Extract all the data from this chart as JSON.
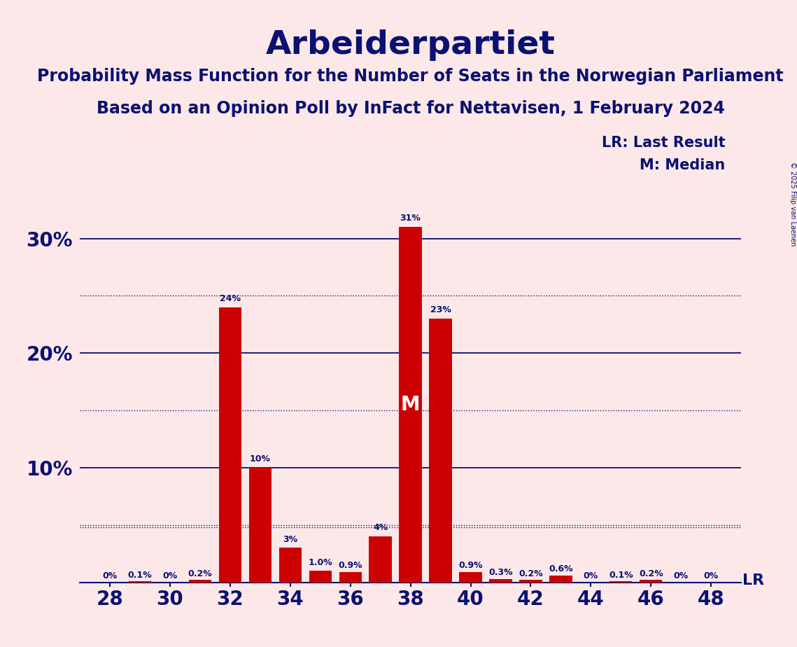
{
  "title": "Arbeiderpartiet",
  "subtitle1": "Probability Mass Function for the Number of Seats in the Norwegian Parliament",
  "subtitle2": "Based on an Opinion Poll by InFact for Nettavisen, 1 February 2024",
  "seats": [
    28,
    29,
    30,
    31,
    32,
    33,
    34,
    35,
    36,
    37,
    38,
    39,
    40,
    41,
    42,
    43,
    44,
    45,
    46,
    47,
    48
  ],
  "probabilities": [
    0.0,
    0.1,
    0.0,
    0.2,
    24.0,
    10.0,
    3.0,
    1.0,
    0.9,
    4.0,
    31.0,
    23.0,
    0.9,
    0.3,
    0.2,
    0.6,
    0.0,
    0.1,
    0.2,
    0.0,
    0.0
  ],
  "labels": [
    "0%",
    "0.1%",
    "0%",
    "0.2%",
    "24%",
    "10%",
    "3%",
    "1.0%",
    "0.9%",
    "4%",
    "31%",
    "23%",
    "0.9%",
    "0.3%",
    "0.2%",
    "0.6%",
    "0%",
    "0.1%",
    "0.2%",
    "0%",
    "0%"
  ],
  "bar_color": "#cc0000",
  "background_color": "#fce8e8",
  "text_color": "#0a1172",
  "title_fontsize": 34,
  "subtitle_fontsize": 17,
  "ylabel_values": [
    10,
    20,
    30
  ],
  "ylim": [
    0,
    35
  ],
  "xlim": [
    27.0,
    49.0
  ],
  "xticks": [
    28,
    30,
    32,
    34,
    36,
    38,
    40,
    42,
    44,
    46,
    48
  ],
  "median_seat": 38,
  "lr_value": 4.8,
  "lr_label": "LR",
  "median_label": "M",
  "legend_lr": "LR: Last Result",
  "legend_m": "M: Median",
  "dotted_lines": [
    5.0,
    15.0,
    25.0
  ],
  "solid_lines": [
    10.0,
    20.0,
    30.0
  ],
  "copyright": "© 2025 Filip van Laenen"
}
